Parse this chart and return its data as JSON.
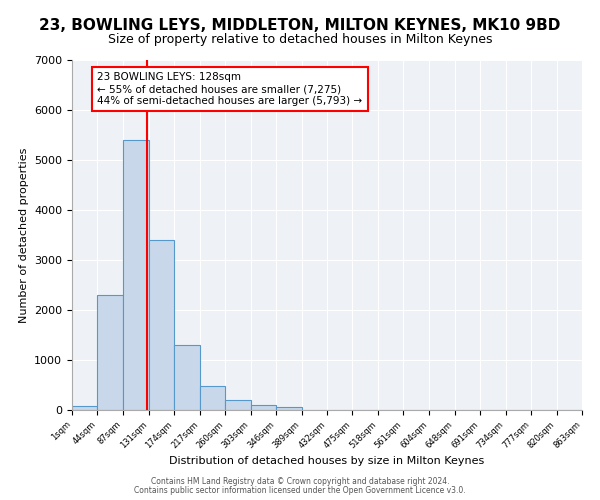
{
  "title1": "23, BOWLING LEYS, MIDDLETON, MILTON KEYNES, MK10 9BD",
  "title2": "Size of property relative to detached houses in Milton Keynes",
  "xlabel": "Distribution of detached houses by size in Milton Keynes",
  "ylabel": "Number of detached properties",
  "bar_heights": [
    75,
    2300,
    5400,
    3400,
    1300,
    480,
    200,
    100,
    65,
    0,
    0,
    0,
    0,
    0,
    0,
    0,
    0,
    0,
    0,
    0
  ],
  "bin_edges": [
    1,
    44,
    87,
    131,
    174,
    217,
    260,
    303,
    346,
    389,
    432,
    475,
    518,
    561,
    604,
    648,
    691,
    734,
    777,
    820,
    863
  ],
  "bar_color": "#c8d8ea",
  "bar_edge_color": "#5599cc",
  "red_line_x": 128,
  "ylim": [
    0,
    7000
  ],
  "annotation_text": "23 BOWLING LEYS: 128sqm\n← 55% of detached houses are smaller (7,275)\n44% of semi-detached houses are larger (5,793) →",
  "annotation_box_color": "white",
  "annotation_box_edge": "red",
  "footer1": "Contains HM Land Registry data © Crown copyright and database right 2024.",
  "footer2": "Contains public sector information licensed under the Open Government Licence v3.0.",
  "title1_fontsize": 11,
  "title2_fontsize": 9,
  "bg_color": "#eef2f7"
}
